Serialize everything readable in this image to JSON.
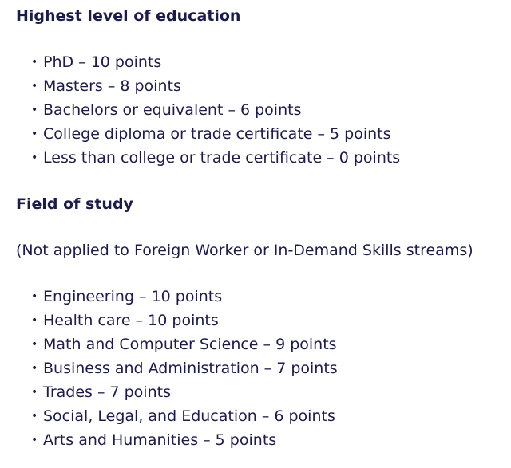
{
  "sections": [
    {
      "heading": "Highest level of education",
      "items": [
        "PhD – 10 points",
        "Masters – 8 points",
        "Bachelors or equivalent – 6 points",
        "College diploma or trade certificate – 5 points",
        "Less than college or trade certificate – 0 points"
      ]
    },
    {
      "heading": "Field of study",
      "note": "(Not applied to Foreign Worker or In-Demand Skills streams)",
      "items": [
        "Engineering – 10 points",
        "Health care – 10 points",
        "Math and Computer Science – 9 points",
        "Business and Administration – 7 points",
        "Trades – 7 points",
        "Social, Legal, and Education – 6 points",
        "Arts and Humanities – 5 points"
      ]
    }
  ]
}
